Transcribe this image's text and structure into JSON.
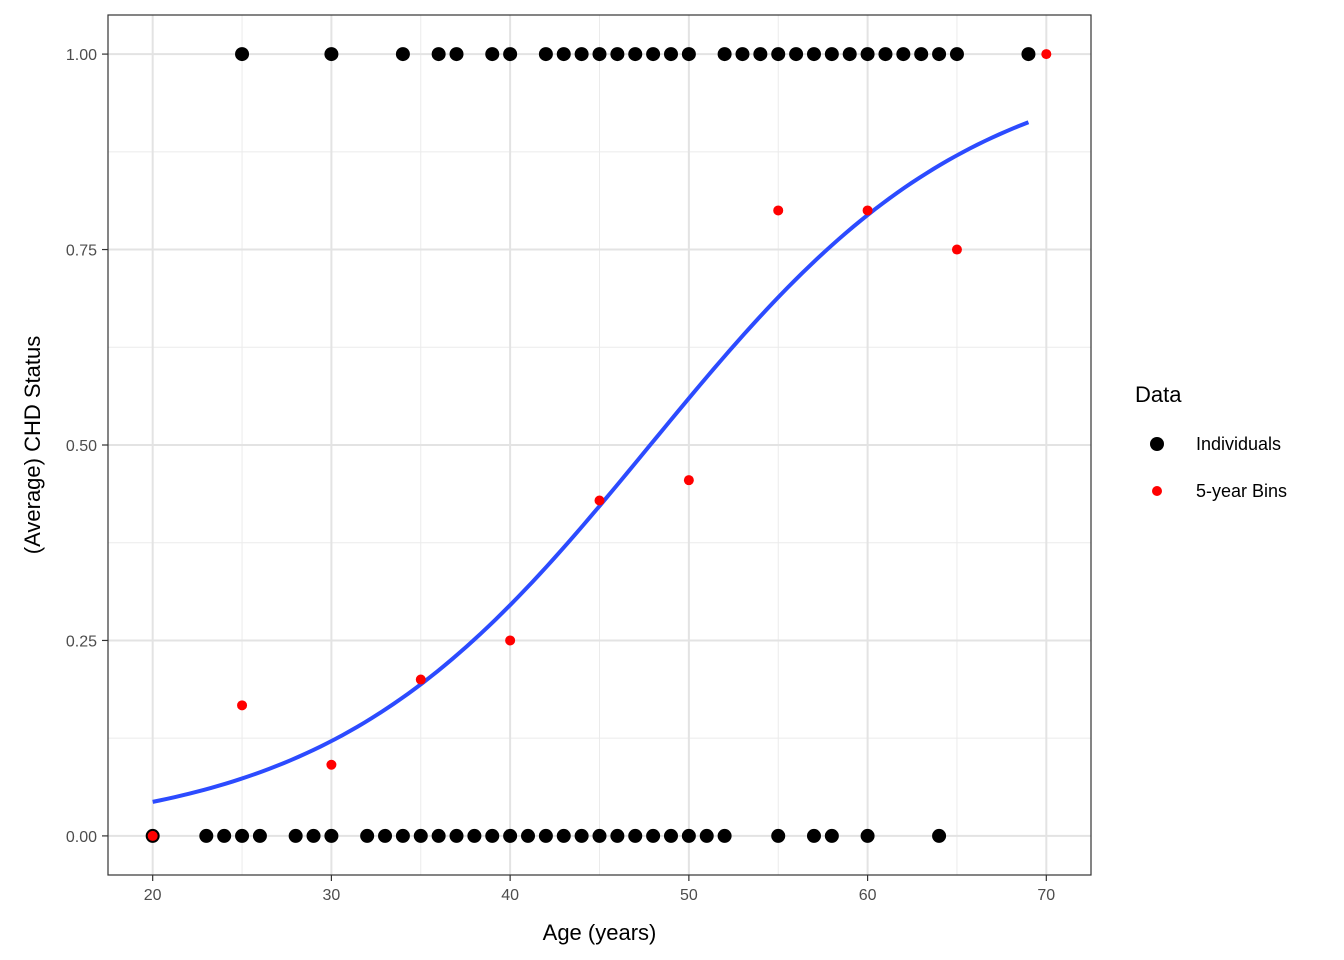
{
  "chart_data": {
    "type": "scatter",
    "xlabel": "Age (years)",
    "ylabel": "(Average) CHD Status",
    "xlim": [
      17.5,
      72.5
    ],
    "ylim": [
      -0.05,
      1.05
    ],
    "x_ticks": [
      20,
      30,
      40,
      50,
      60,
      70
    ],
    "y_ticks": [
      0,
      0.25,
      0.5,
      0.75,
      1.0
    ],
    "x_tick_labels": [
      "20",
      "30",
      "40",
      "50",
      "60",
      "70"
    ],
    "y_tick_labels": [
      "0.00",
      "0.25",
      "0.50",
      "0.75",
      "1.00"
    ],
    "grid": true,
    "legend": {
      "title": "Data",
      "position": "right",
      "entries": [
        {
          "label": "Individuals",
          "color": "#000000"
        },
        {
          "label": "5-year Bins",
          "color": "#ff0000"
        }
      ]
    },
    "series": [
      {
        "name": "Individuals",
        "color": "#000000",
        "points": [
          [
            20,
            0
          ],
          [
            23,
            0
          ],
          [
            24,
            0
          ],
          [
            25,
            0
          ],
          [
            26,
            0
          ],
          [
            28,
            0
          ],
          [
            29,
            0
          ],
          [
            30,
            0
          ],
          [
            32,
            0
          ],
          [
            33,
            0
          ],
          [
            34,
            0
          ],
          [
            35,
            0
          ],
          [
            36,
            0
          ],
          [
            37,
            0
          ],
          [
            38,
            0
          ],
          [
            39,
            0
          ],
          [
            40,
            0
          ],
          [
            41,
            0
          ],
          [
            42,
            0
          ],
          [
            43,
            0
          ],
          [
            44,
            0
          ],
          [
            45,
            0
          ],
          [
            46,
            0
          ],
          [
            47,
            0
          ],
          [
            48,
            0
          ],
          [
            49,
            0
          ],
          [
            50,
            0
          ],
          [
            51,
            0
          ],
          [
            52,
            0
          ],
          [
            55,
            0
          ],
          [
            57,
            0
          ],
          [
            58,
            0
          ],
          [
            60,
            0
          ],
          [
            64,
            0
          ],
          [
            25,
            1
          ],
          [
            30,
            1
          ],
          [
            34,
            1
          ],
          [
            36,
            1
          ],
          [
            37,
            1
          ],
          [
            39,
            1
          ],
          [
            40,
            1
          ],
          [
            42,
            1
          ],
          [
            43,
            1
          ],
          [
            44,
            1
          ],
          [
            45,
            1
          ],
          [
            46,
            1
          ],
          [
            47,
            1
          ],
          [
            48,
            1
          ],
          [
            49,
            1
          ],
          [
            50,
            1
          ],
          [
            52,
            1
          ],
          [
            53,
            1
          ],
          [
            54,
            1
          ],
          [
            55,
            1
          ],
          [
            56,
            1
          ],
          [
            57,
            1
          ],
          [
            58,
            1
          ],
          [
            59,
            1
          ],
          [
            60,
            1
          ],
          [
            61,
            1
          ],
          [
            62,
            1
          ],
          [
            63,
            1
          ],
          [
            64,
            1
          ],
          [
            65,
            1
          ],
          [
            69,
            1
          ]
        ]
      },
      {
        "name": "5-year Bins",
        "color": "#ff0000",
        "points": [
          [
            20,
            0
          ],
          [
            25,
            0.167
          ],
          [
            30,
            0.091
          ],
          [
            35,
            0.2
          ],
          [
            40,
            0.25
          ],
          [
            45,
            0.429
          ],
          [
            50,
            0.455
          ],
          [
            55,
            0.8
          ],
          [
            60,
            0.8
          ],
          [
            65,
            0.75
          ],
          [
            70,
            1.0
          ]
        ]
      }
    ],
    "logistic_fit": {
      "color": "#2c4bff",
      "x_range": [
        20,
        69
      ],
      "intercept": -5.31,
      "slope": 0.111
    }
  }
}
